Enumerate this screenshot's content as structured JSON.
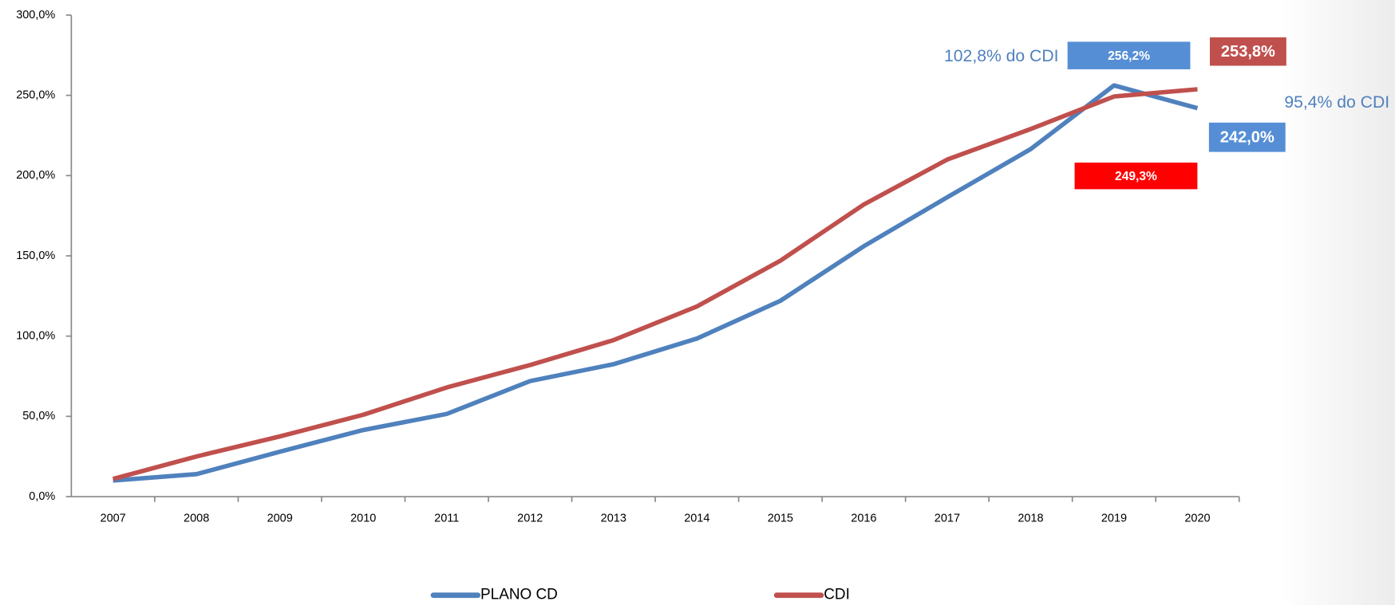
{
  "chart_data": {
    "type": "line",
    "categories": [
      "2007",
      "2008",
      "2009",
      "2010",
      "2011",
      "2012",
      "2013",
      "2014",
      "2015",
      "2016",
      "2017",
      "2018",
      "2019",
      "2020"
    ],
    "series": [
      {
        "name": "PLANO CD",
        "color": "#4f81bd",
        "values": [
          10,
          14,
          28,
          41.5,
          51.5,
          72,
          82.5,
          98.5,
          122,
          156,
          186.5,
          216.5,
          256.2,
          242.0
        ],
        "value_labels": [
          null,
          null,
          null,
          null,
          null,
          null,
          null,
          null,
          null,
          null,
          null,
          null,
          "256,2%",
          "242,0%"
        ]
      },
      {
        "name": "CDI",
        "color": "#c0504d",
        "values": [
          11,
          25,
          37.5,
          51,
          68,
          82,
          97.5,
          118.5,
          147,
          182,
          210,
          229,
          249.3,
          253.8
        ],
        "value_labels": [
          null,
          null,
          null,
          null,
          null,
          null,
          null,
          null,
          null,
          null,
          null,
          null,
          "249,3%",
          "253,8%"
        ]
      }
    ],
    "annotations": [
      "102,8% do CDI",
      "95,4% do CDI"
    ],
    "ylim": [
      0,
      300
    ],
    "yticks": [
      {
        "value": 0,
        "label": "0,0%"
      },
      {
        "value": 50,
        "label": "50,0%"
      },
      {
        "value": 100,
        "label": "100,0%"
      },
      {
        "value": 150,
        "label": "150,0%"
      },
      {
        "value": 200,
        "label": "200,0%"
      },
      {
        "value": 250,
        "label": "250,0%"
      },
      {
        "value": 300,
        "label": "300,0%"
      }
    ]
  }
}
